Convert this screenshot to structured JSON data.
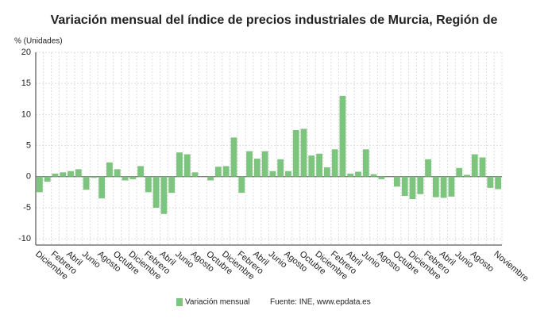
{
  "chart_data": {
    "type": "bar",
    "title": "Variación mensual del índice de precios industriales de Murcia, Región de",
    "y_label": "% (Unidades)",
    "source": "Fuente: INE, www.epdata.es",
    "categories": [
      "Diciembre",
      null,
      "Febrero",
      null,
      "Abril",
      null,
      "Junio",
      null,
      "Agosto",
      null,
      "Octubre",
      null,
      "Diciembre",
      null,
      "Febrero",
      null,
      "Abril",
      null,
      "Junio",
      null,
      "Agosto",
      null,
      "Octubre",
      null,
      "Diciembre",
      null,
      "Febrero",
      null,
      "Abril",
      null,
      "Junio",
      null,
      "Agosto",
      null,
      "Octubre",
      null,
      "Diciembre",
      null,
      "Febrero",
      null,
      "Abril",
      null,
      "Junio",
      null,
      "Agosto",
      null,
      "Octubre",
      null,
      "Diciembre",
      null,
      "Febrero",
      null,
      "Abril",
      null,
      "Junio",
      null,
      "Agosto",
      null,
      null,
      "Noviembre"
    ],
    "series": [
      {
        "name": "Variación mensual",
        "color": "#7dc57e",
        "values": [
          -2.5,
          -0.8,
          0.5,
          0.7,
          0.9,
          1.2,
          -2.1,
          -0.2,
          -3.5,
          2.3,
          1.2,
          -0.6,
          -0.4,
          1.7,
          -2.5,
          -5.0,
          -6.0,
          -2.6,
          3.9,
          3.6,
          0.7,
          0.0,
          -0.6,
          1.6,
          1.7,
          6.3,
          -2.6,
          4.1,
          2.9,
          4.1,
          0.9,
          2.8,
          0.9,
          7.5,
          7.7,
          3.4,
          3.7,
          1.5,
          4.4,
          13.0,
          0.5,
          0.8,
          4.4,
          0.4,
          -0.4,
          0.0,
          -1.6,
          -3.1,
          -3.6,
          -2.8,
          2.8,
          -3.3,
          -3.4,
          -3.2,
          1.4,
          0.3,
          3.6,
          3.1,
          -1.8,
          -2.0
        ]
      }
    ],
    "ylim": [
      -11,
      20
    ],
    "yticks": [
      -10,
      -5,
      0,
      5,
      10,
      15,
      20
    ],
    "grid": true
  }
}
